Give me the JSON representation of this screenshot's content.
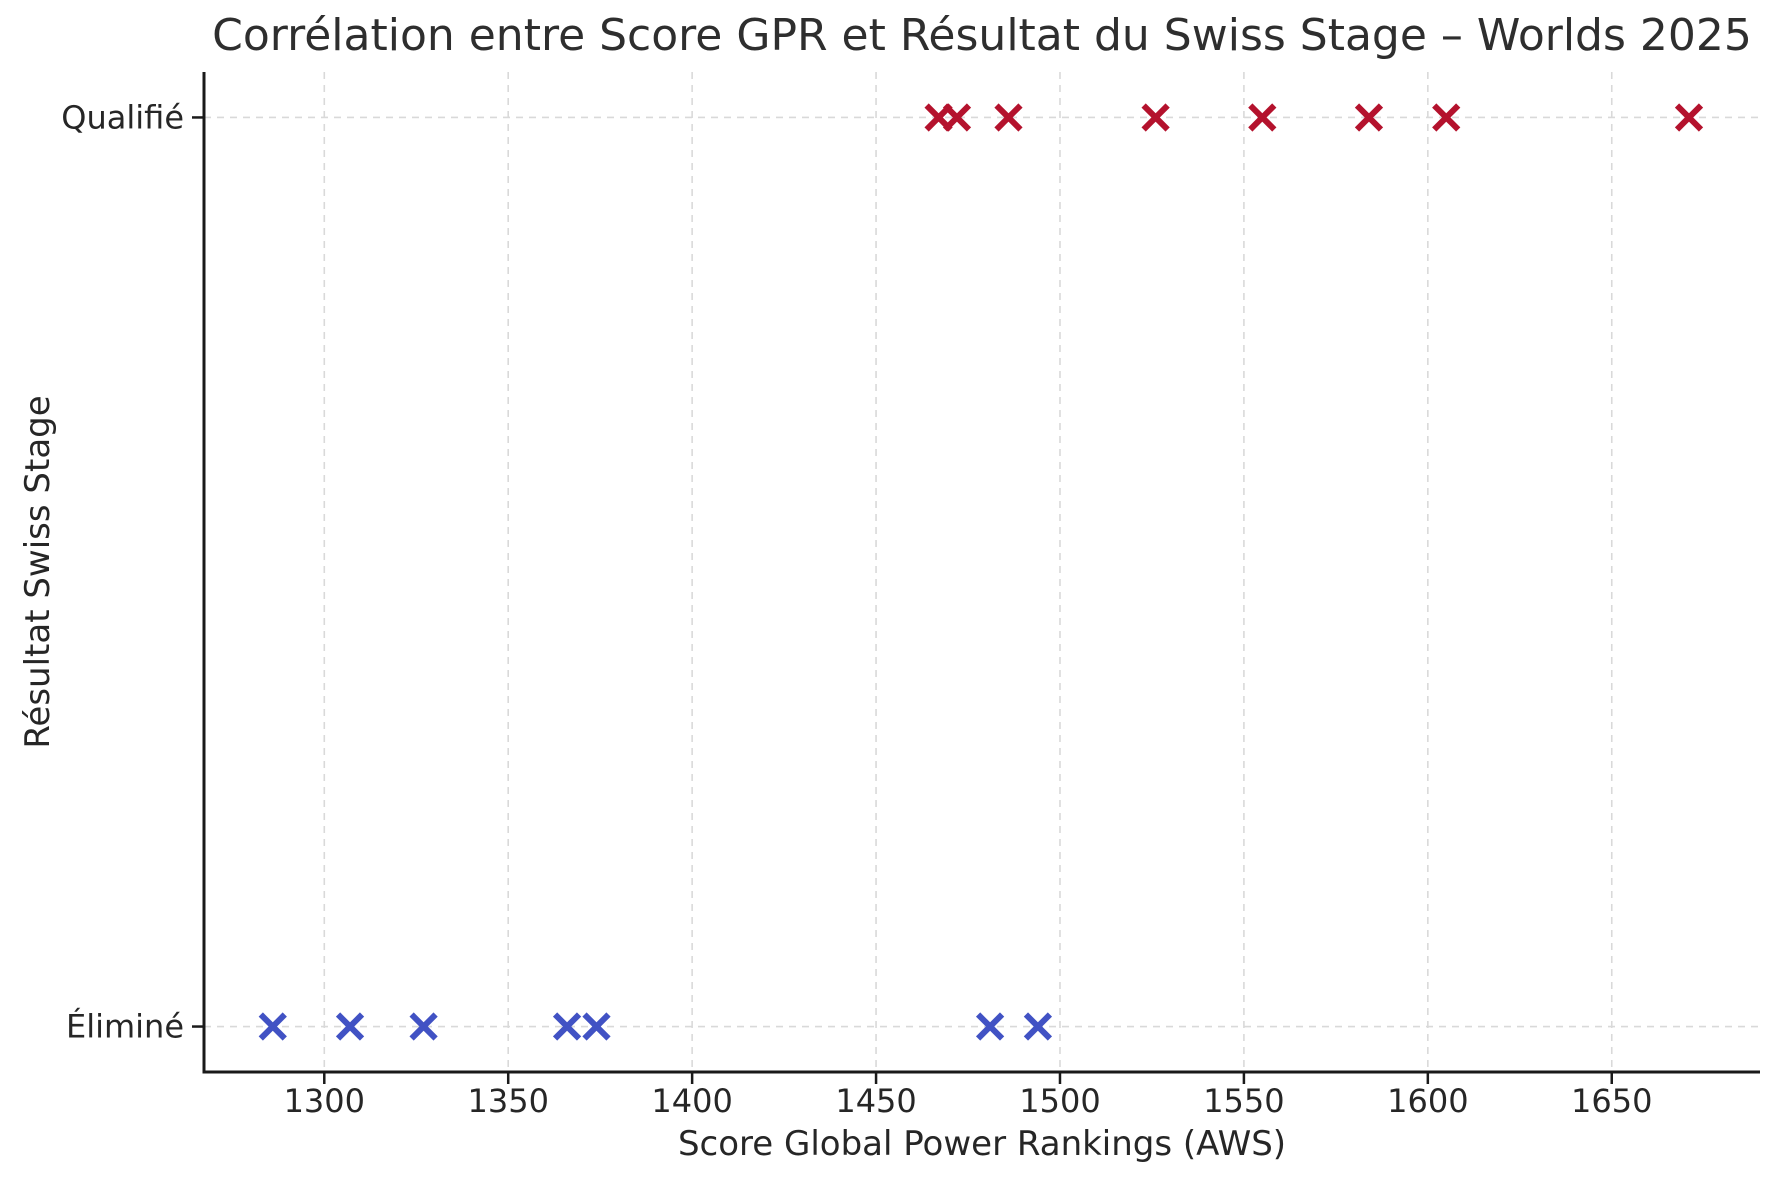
{
  "chart_data": {
    "type": "scatter",
    "title": "Corrélation entre Score GPR et Résultat du Swiss Stage – Worlds 2025",
    "xlabel": "Score Global Power Rankings (AWS)",
    "ylabel": "Résultat Swiss Stage",
    "y_categories": [
      "Éliminé",
      "Qualifié"
    ],
    "series": [
      {
        "name": "Éliminé",
        "y_category": "Éliminé",
        "color": "#4152c4",
        "x": [
          1286,
          1307,
          1327,
          1366,
          1374,
          1481,
          1494
        ]
      },
      {
        "name": "Qualifié",
        "y_category": "Qualifié",
        "color": "#b4122d",
        "x": [
          1467,
          1472,
          1486,
          1526,
          1555,
          1584,
          1605,
          1671
        ]
      }
    ],
    "marker": "x",
    "xticks": [
      1300,
      1350,
      1400,
      1450,
      1500,
      1550,
      1600,
      1650
    ],
    "xlim": [
      1267.3,
      1690.3
    ],
    "ylim": [
      -0.05,
      1.05
    ],
    "grid": {
      "show": true,
      "style": "dashed",
      "color": "#d9d9d9"
    },
    "legend": "none",
    "spine_color": "#1a1a1a",
    "tick_color": "#262626",
    "title_color": "#2e2e2e"
  }
}
